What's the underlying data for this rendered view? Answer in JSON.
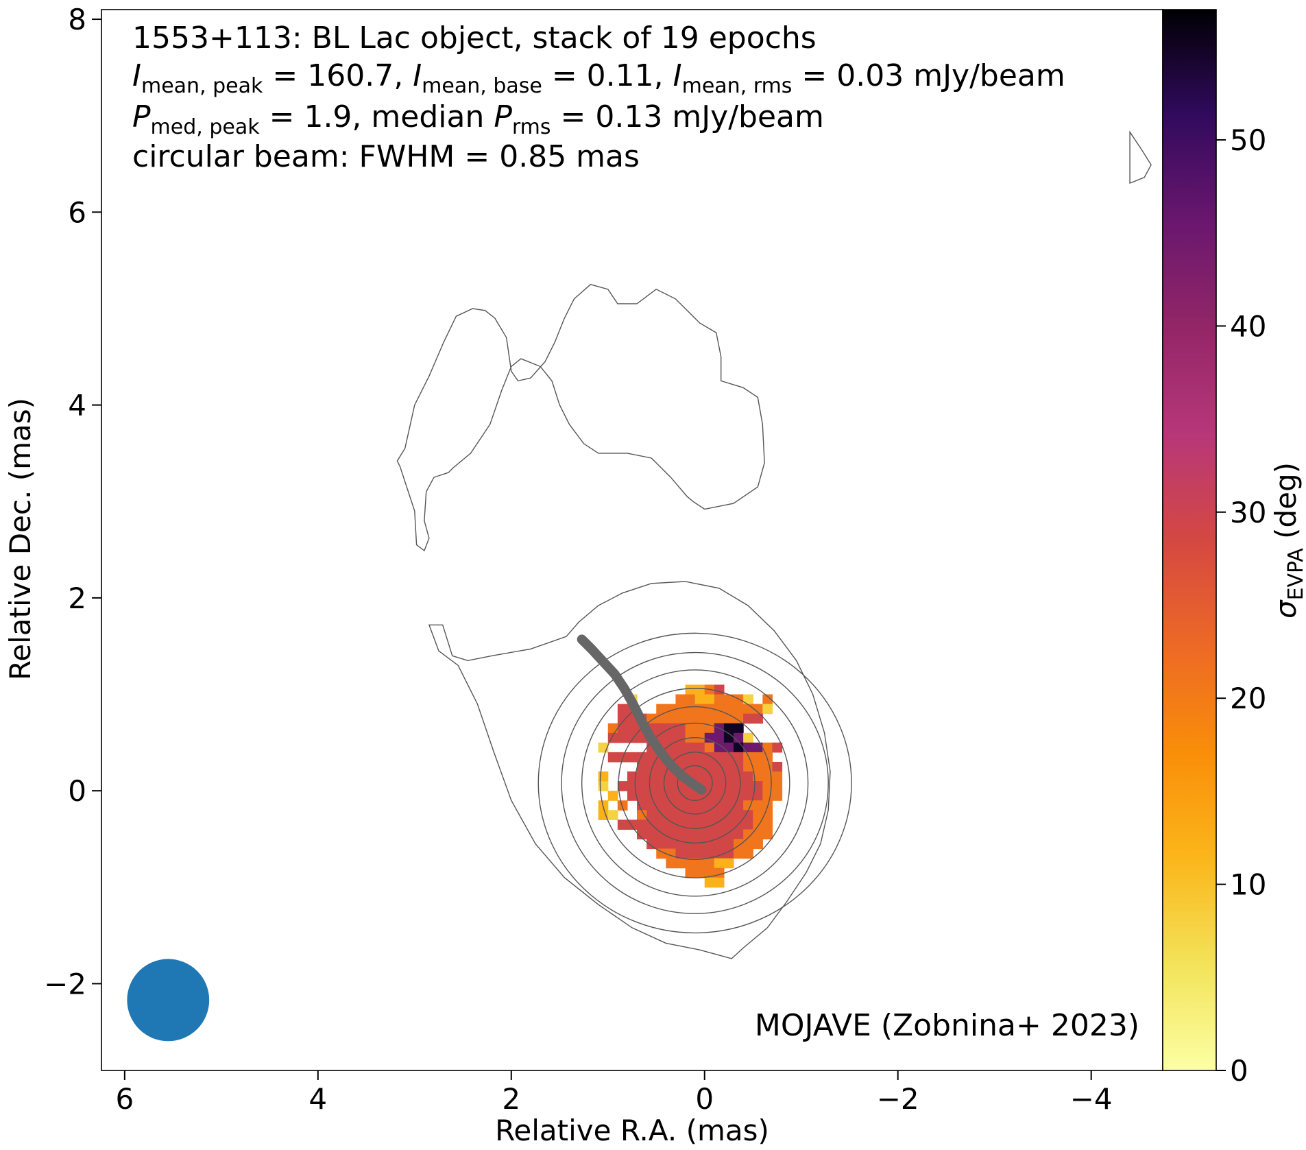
{
  "chart_data": {
    "type": "heatmap",
    "title_lines": {
      "line1": "1553+113: BL Lac object, stack of 19 epochs",
      "line2": {
        "i_peak_sym": "I",
        "i_peak_sub": "mean, peak",
        "i_peak_eq": " = 160.7, ",
        "i_base_sym": "I",
        "i_base_sub": "mean, base",
        "i_base_eq": " = 0.11, ",
        "i_rms_sym": "I",
        "i_rms_sub": "mean, rms",
        "i_rms_eq": " = 0.03 mJy/beam"
      },
      "line3": {
        "p_peak_sym": "P",
        "p_peak_sub": "med, peak",
        "p_peak_eq": " = 1.9, median ",
        "p_rms_sym": "P",
        "p_rms_sub": "rms",
        "p_rms_eq": " = 0.13 mJy/beam"
      },
      "line4": "circular beam: FWHM = 0.85 mas"
    },
    "credit": "MOJAVE (Zobnina+ 2023)",
    "xlabel": "Relative R.A. (mas)",
    "ylabel": "Relative Dec. (mas)",
    "colorbar_label_sym": "σ",
    "colorbar_label_sub": "EVPA",
    "colorbar_label_unit": " (deg)",
    "xlim": [
      6.24,
      -4.74
    ],
    "ylim": [
      -2.9,
      8.1
    ],
    "x_ticks": [
      6,
      4,
      2,
      0,
      -2,
      -4
    ],
    "x_tick_labels": [
      "6",
      "4",
      "2",
      "0",
      "−2",
      "−4"
    ],
    "y_ticks": [
      -2,
      0,
      2,
      4,
      6,
      8
    ],
    "y_tick_labels": [
      "−2",
      "0",
      "2",
      "4",
      "6",
      "8"
    ],
    "colorbar_range": [
      0,
      57
    ],
    "colorbar_ticks": [
      0,
      10,
      20,
      30,
      40,
      50
    ],
    "colorbar_tick_labels": [
      "0",
      "10",
      "20",
      "30",
      "40",
      "50"
    ],
    "colormap": "inferno_r",
    "beam": {
      "x": 5.55,
      "y": -2.17,
      "fwhm": 0.85,
      "color": "#1f77b4"
    },
    "ridge_line": {
      "color": "#666666",
      "x": [
        1.27,
        1.17,
        1.05,
        0.93,
        0.83,
        0.74,
        0.66,
        0.57,
        0.47,
        0.36,
        0.24,
        0.12,
        0.03
      ],
      "y": [
        1.57,
        1.47,
        1.34,
        1.21,
        1.06,
        0.9,
        0.74,
        0.57,
        0.42,
        0.28,
        0.16,
        0.07,
        0.01
      ]
    },
    "core_contours": {
      "center": [
        0.1,
        0.08
      ],
      "radii_x": [
        0.18,
        0.32,
        0.47,
        0.62,
        0.79,
        0.98,
        1.17,
        1.38,
        1.62
      ],
      "radii_y": [
        0.18,
        0.32,
        0.47,
        0.62,
        0.79,
        0.98,
        1.17,
        1.35,
        1.55
      ]
    },
    "outer_contours": [
      [
        [
          1.43,
          1.6
        ],
        [
          1.3,
          1.75
        ],
        [
          1.1,
          1.92
        ],
        [
          0.85,
          2.05
        ],
        [
          0.55,
          2.15
        ],
        [
          0.2,
          2.17
        ],
        [
          -0.15,
          2.1
        ],
        [
          -0.45,
          1.92
        ],
        [
          -0.72,
          1.66
        ],
        [
          -0.95,
          1.35
        ],
        [
          -1.12,
          1.0
        ],
        [
          -1.24,
          0.6
        ],
        [
          -1.3,
          0.2
        ],
        [
          -1.28,
          -0.2
        ],
        [
          -1.2,
          -0.55
        ],
        [
          -1.05,
          -0.85
        ],
        [
          -0.85,
          -1.15
        ],
        [
          -0.65,
          -1.42
        ],
        [
          -0.4,
          -1.63
        ],
        [
          -0.28,
          -1.74
        ],
        [
          0.05,
          -1.65
        ],
        [
          0.4,
          -1.58
        ],
        [
          0.75,
          -1.42
        ],
        [
          1.1,
          -1.18
        ],
        [
          1.45,
          -0.9
        ],
        [
          1.75,
          -0.55
        ],
        [
          2.0,
          -0.1
        ],
        [
          2.18,
          0.4
        ],
        [
          2.35,
          0.9
        ],
        [
          2.55,
          1.3
        ],
        [
          2.75,
          1.45
        ],
        [
          2.85,
          1.72
        ],
        [
          2.71,
          1.72
        ],
        [
          2.61,
          1.4
        ],
        [
          2.45,
          1.35
        ],
        [
          2.2,
          1.4
        ],
        [
          1.8,
          1.47
        ],
        [
          1.43,
          1.6
        ]
      ],
      [
        [
          2.9,
          2.49
        ],
        [
          2.98,
          2.55
        ],
        [
          3.0,
          2.9
        ],
        [
          3.15,
          3.36
        ],
        [
          3.18,
          3.42
        ],
        [
          3.1,
          3.55
        ],
        [
          3.0,
          4.0
        ],
        [
          2.85,
          4.3
        ],
        [
          2.7,
          4.65
        ],
        [
          2.57,
          4.92
        ],
        [
          2.4,
          5.0
        ],
        [
          2.27,
          4.98
        ],
        [
          2.17,
          4.9
        ],
        [
          2.05,
          4.7
        ],
        [
          2.0,
          4.35
        ],
        [
          1.93,
          4.25
        ],
        [
          1.8,
          4.28
        ],
        [
          1.65,
          4.45
        ],
        [
          1.55,
          4.65
        ],
        [
          1.45,
          4.9
        ],
        [
          1.35,
          5.1
        ],
        [
          1.18,
          5.25
        ],
        [
          1.0,
          5.2
        ],
        [
          0.9,
          5.05
        ],
        [
          0.7,
          5.05
        ],
        [
          0.5,
          5.2
        ],
        [
          0.3,
          5.1
        ],
        [
          0.15,
          4.95
        ],
        [
          0.05,
          4.85
        ],
        [
          -0.12,
          4.75
        ],
        [
          -0.17,
          4.5
        ],
        [
          -0.17,
          4.25
        ],
        [
          -0.4,
          4.18
        ],
        [
          -0.55,
          4.08
        ],
        [
          -0.6,
          3.8
        ],
        [
          -0.62,
          3.4
        ],
        [
          -0.55,
          3.15
        ],
        [
          -0.3,
          2.98
        ],
        [
          0.0,
          2.92
        ],
        [
          0.12,
          3.0
        ],
        [
          0.18,
          3.05
        ],
        [
          0.35,
          3.25
        ],
        [
          0.55,
          3.45
        ],
        [
          0.8,
          3.5
        ],
        [
          1.1,
          3.5
        ],
        [
          1.25,
          3.6
        ],
        [
          1.4,
          3.8
        ],
        [
          1.5,
          4.0
        ],
        [
          1.58,
          4.25
        ],
        [
          1.7,
          4.4
        ],
        [
          1.9,
          4.48
        ],
        [
          2.0,
          4.4
        ],
        [
          2.1,
          4.15
        ],
        [
          2.22,
          3.8
        ],
        [
          2.42,
          3.5
        ],
        [
          2.6,
          3.35
        ],
        [
          2.65,
          3.3
        ],
        [
          2.8,
          3.25
        ],
        [
          2.88,
          3.1
        ],
        [
          2.9,
          2.8
        ],
        [
          2.85,
          2.62
        ],
        [
          2.9,
          2.49
        ]
      ],
      [
        [
          -4.62,
          6.49
        ],
        [
          -4.52,
          6.65
        ],
        [
          -4.4,
          6.83
        ],
        [
          -4.4,
          6.3
        ],
        [
          -4.55,
          6.36
        ],
        [
          -4.62,
          6.49
        ]
      ]
    ],
    "pixel_grid": {
      "x0": 1.2,
      "y_top": 1.1,
      "step": 0.1,
      "rows": [
        "..........ggGm......",
        "....y....GGggGGGy.G.",
        "...mm..GGGGGGGGGGGy.",
        "...mmmGGGGGGGGGGmm..",
        "..GmmmmmmmGGGHxx....",
        "..mmmmmmmmGGHHxHy...",
        ".y....mmmmmmGHHxHHGm",
        "..mmmmmmmmmmmmmmGGG.",
        ".....mmmmmmmmmmmGGGm",
        ".g..mmmmmmmmmmmmmGGG",
        ".y.mmmmmmmmmmmmmmmGG",
        "..g.mmmmmmmmmmmmmmGG",
        ".g.G.mmmmmmmmmmmGGG.",
        ".gy..GmmmmmmmmmmmGG.",
        "...mmmmmmmmmmmmmmGG.",
        ".....mmmmmmmmmmmGGG.",
        "......mmmmmmmmmGGG..",
        ".......GGmmmmmmGG...",
        "........GGGGGgg.....",
        "..........GGGG..",
        "............gg.."
      ],
      "palette": {
        "y": 8,
        "g": 12,
        "G": 21,
        "m": 29,
        "H": 45,
        "x": 55
      }
    }
  }
}
